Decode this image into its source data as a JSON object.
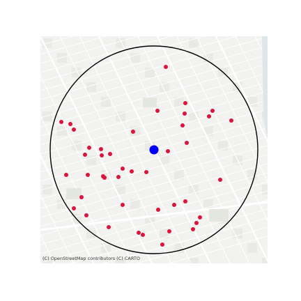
{
  "map": {
    "attribution": "(C) OpenStreetMap contributors (C) CARTO",
    "colors": {
      "land": "#f2f2f0",
      "roads": "#ffffff",
      "blocks": "#e9e9e6",
      "parks": "#e4e7df",
      "water": "#dfe6ea",
      "circle": "#000000",
      "center_marker": "#0000ff",
      "points": "#dc143c"
    },
    "center_marker": {
      "name": "center-marker"
    },
    "points_count": 43
  }
}
